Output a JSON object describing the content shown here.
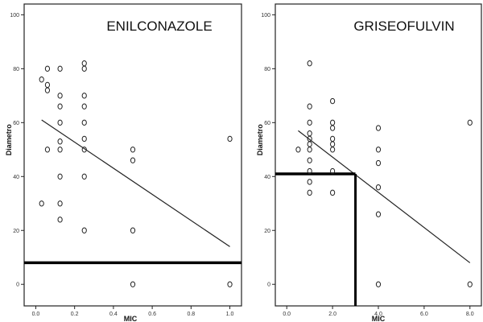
{
  "chart_data": [
    {
      "type": "scatter",
      "title": "ENILCONAZOLE",
      "xlabel": "MIC",
      "ylabel": "Diametro",
      "xlim": [
        -0.06,
        1.06
      ],
      "ylim": [
        -8,
        104
      ],
      "xticks": [
        0.0,
        0.2,
        0.4,
        0.6,
        0.8,
        1.0
      ],
      "xtick_labels": [
        "0.0",
        "0.2",
        "0.4",
        "0.6",
        "0.8",
        "1.0"
      ],
      "yticks": [
        0,
        20,
        40,
        60,
        80,
        100
      ],
      "ytick_labels": [
        "0",
        "20",
        "40",
        "60",
        "80",
        "100"
      ],
      "grid": false,
      "points": [
        {
          "x": 0.03,
          "y": 30
        },
        {
          "x": 0.03,
          "y": 76
        },
        {
          "x": 0.06,
          "y": 80
        },
        {
          "x": 0.06,
          "y": 74
        },
        {
          "x": 0.06,
          "y": 72
        },
        {
          "x": 0.06,
          "y": 50
        },
        {
          "x": 0.125,
          "y": 80
        },
        {
          "x": 0.125,
          "y": 70
        },
        {
          "x": 0.125,
          "y": 66
        },
        {
          "x": 0.125,
          "y": 60
        },
        {
          "x": 0.125,
          "y": 53
        },
        {
          "x": 0.125,
          "y": 50
        },
        {
          "x": 0.125,
          "y": 40
        },
        {
          "x": 0.125,
          "y": 30
        },
        {
          "x": 0.125,
          "y": 24
        },
        {
          "x": 0.25,
          "y": 82
        },
        {
          "x": 0.25,
          "y": 80
        },
        {
          "x": 0.25,
          "y": 70
        },
        {
          "x": 0.25,
          "y": 66
        },
        {
          "x": 0.25,
          "y": 60
        },
        {
          "x": 0.25,
          "y": 54
        },
        {
          "x": 0.25,
          "y": 50
        },
        {
          "x": 0.25,
          "y": 40
        },
        {
          "x": 0.25,
          "y": 20
        },
        {
          "x": 0.5,
          "y": 50
        },
        {
          "x": 0.5,
          "y": 46
        },
        {
          "x": 0.5,
          "y": 20
        },
        {
          "x": 0.5,
          "y": 0
        },
        {
          "x": 1.0,
          "y": 54
        },
        {
          "x": 1.0,
          "y": 0
        }
      ],
      "fit_line": {
        "x1": 0.03,
        "y1": 61,
        "x2": 1.0,
        "y2": 14
      },
      "reference_lines": [
        {
          "orientation": "horizontal",
          "value": 8,
          "x_from": -0.06,
          "x_to": 1.06
        }
      ]
    },
    {
      "type": "scatter",
      "title": "GRISEOFULVIN",
      "xlabel": "MIC",
      "ylabel": "Diametro",
      "xlim": [
        -0.5,
        8.5
      ],
      "ylim": [
        -8,
        104
      ],
      "xticks": [
        0,
        2,
        4,
        6,
        8
      ],
      "xtick_labels": [
        "0.0",
        "2.0",
        "4.0",
        "6.0",
        "8.0"
      ],
      "yticks": [
        0,
        20,
        40,
        60,
        80,
        100
      ],
      "ytick_labels": [
        "0",
        "20",
        "40",
        "60",
        "80",
        "100"
      ],
      "grid": false,
      "points": [
        {
          "x": 0.5,
          "y": 50
        },
        {
          "x": 1,
          "y": 82
        },
        {
          "x": 1,
          "y": 66
        },
        {
          "x": 1,
          "y": 60
        },
        {
          "x": 1,
          "y": 56
        },
        {
          "x": 1,
          "y": 54
        },
        {
          "x": 1,
          "y": 52
        },
        {
          "x": 1,
          "y": 50
        },
        {
          "x": 1,
          "y": 46
        },
        {
          "x": 1,
          "y": 42
        },
        {
          "x": 1,
          "y": 38
        },
        {
          "x": 1,
          "y": 34
        },
        {
          "x": 2,
          "y": 68
        },
        {
          "x": 2,
          "y": 60
        },
        {
          "x": 2,
          "y": 58
        },
        {
          "x": 2,
          "y": 54
        },
        {
          "x": 2,
          "y": 52
        },
        {
          "x": 2,
          "y": 50
        },
        {
          "x": 2,
          "y": 42
        },
        {
          "x": 2,
          "y": 34
        },
        {
          "x": 4,
          "y": 58
        },
        {
          "x": 4,
          "y": 50
        },
        {
          "x": 4,
          "y": 45
        },
        {
          "x": 4,
          "y": 36
        },
        {
          "x": 4,
          "y": 26
        },
        {
          "x": 4,
          "y": 0
        },
        {
          "x": 8,
          "y": 60
        },
        {
          "x": 8,
          "y": 0
        }
      ],
      "fit_line": {
        "x1": 0.5,
        "y1": 57,
        "x2": 8.0,
        "y2": 8
      },
      "reference_lines": [
        {
          "orientation": "horizontal",
          "value": 41,
          "x_from": -0.5,
          "x_to": 3.0
        },
        {
          "orientation": "vertical",
          "value": 3.0,
          "y_from": -8,
          "y_to": 41
        }
      ]
    }
  ]
}
